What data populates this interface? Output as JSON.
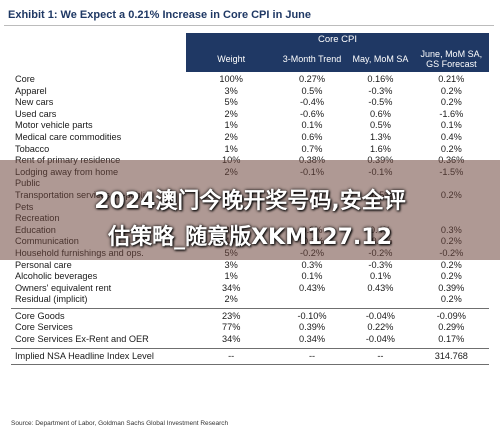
{
  "title": "Exhibit 1: We Expect a 0.21% Increase in Core CPI in June",
  "header": {
    "group": "Core CPI",
    "cols": [
      "Weight",
      "3-Month Trend",
      "May, MoM SA",
      "June, MoM SA, GS Forecast"
    ]
  },
  "rows_main": [
    [
      "Core",
      "100%",
      "0.27%",
      "0.16%",
      "0.21%"
    ],
    [
      "Apparel",
      "3%",
      "0.5%",
      "-0.3%",
      "0.2%"
    ],
    [
      "New cars",
      "5%",
      "-0.4%",
      "-0.5%",
      "0.2%"
    ],
    [
      "Used cars",
      "2%",
      "-0.6%",
      "0.6%",
      "-1.6%"
    ],
    [
      "Motor vehicle parts",
      "1%",
      "0.1%",
      "0.5%",
      "0.1%"
    ],
    [
      "Medical care commodities",
      "2%",
      "0.6%",
      "1.3%",
      "0.4%"
    ],
    [
      "Tobacco",
      "1%",
      "0.7%",
      "1.6%",
      "0.2%"
    ],
    [
      "Rent of primary residence",
      "10%",
      "0.38%",
      "0.39%",
      "0.36%"
    ],
    [
      "Lodging away from home",
      "2%",
      "-0.1%",
      "-0.1%",
      "-1.5%"
    ],
    [
      "Public",
      "",
      "",
      "",
      ""
    ],
    [
      "Transportation services ex-public",
      "7%",
      "0.6%",
      "-0.5%",
      "0.2%"
    ],
    [
      "Pets",
      "",
      "",
      "",
      ""
    ],
    [
      "Recreation",
      "",
      "",
      "",
      ""
    ],
    [
      "Education",
      "3%",
      "0.3%",
      "0.4%",
      "0.3%"
    ],
    [
      "Communication",
      "4%",
      "-0.1%",
      "-0.3%",
      "0.2%"
    ],
    [
      "Household furnishings and ops.",
      "5%",
      "-0.2%",
      "-0.2%",
      "-0.2%"
    ],
    [
      "Personal care",
      "3%",
      "0.3%",
      "-0.3%",
      "0.2%"
    ],
    [
      "Alcoholic beverages",
      "1%",
      "0.1%",
      "0.1%",
      "0.2%"
    ],
    [
      "Owners' equivalent rent",
      "34%",
      "0.43%",
      "0.43%",
      "0.39%"
    ],
    [
      "Residual (implicit)",
      "2%",
      "",
      "",
      "0.2%"
    ]
  ],
  "rows_core": [
    [
      "Core Goods",
      "23%",
      "-0.10%",
      "-0.04%",
      "-0.09%"
    ],
    [
      "Core Services",
      "77%",
      "0.39%",
      "0.22%",
      "0.29%"
    ],
    [
      "Core Services Ex-Rent and OER",
      "34%",
      "0.34%",
      "-0.04%",
      "0.17%"
    ]
  ],
  "row_implied": [
    "Implied NSA Headline Index Level",
    "--",
    "--",
    "--",
    "314.768"
  ],
  "watermark": {
    "line1": "2024澳门今晚开奖号码,安全评",
    "line2": "估策略_随意版XKM127.12"
  },
  "source": "Source: Department of Labor, Goldman Sachs Global Investment Research"
}
